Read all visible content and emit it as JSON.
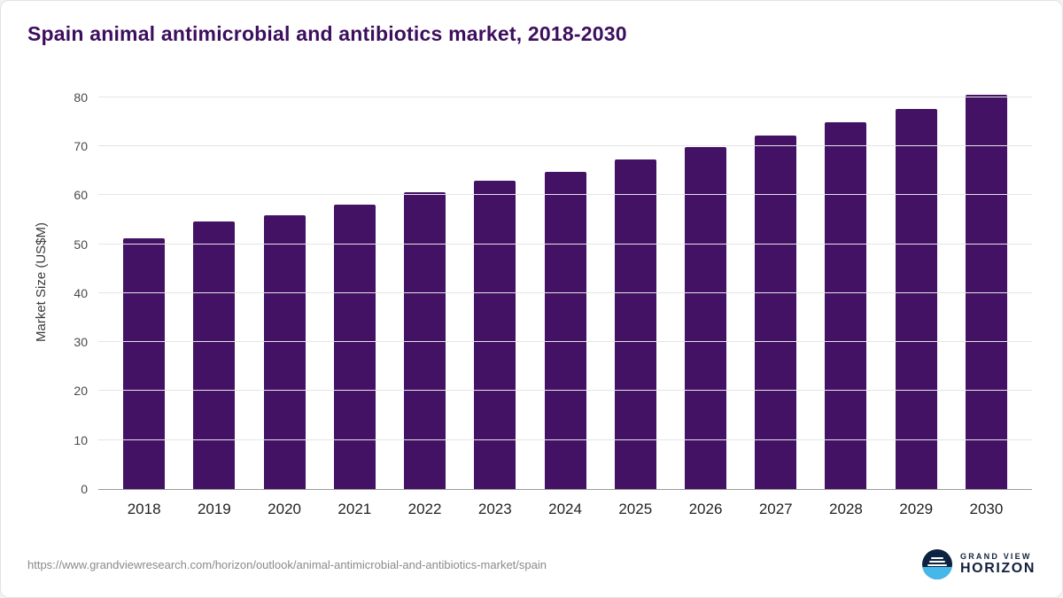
{
  "title": "Spain animal antimicrobial and antibiotics market, 2018-2030",
  "chart_data": {
    "type": "bar",
    "title": "Spain animal antimicrobial and antibiotics market, 2018-2030",
    "categories": [
      "2018",
      "2019",
      "2020",
      "2021",
      "2022",
      "2023",
      "2024",
      "2025",
      "2026",
      "2027",
      "2028",
      "2029",
      "2030"
    ],
    "values": [
      51.2,
      54.6,
      56.0,
      58.0,
      60.7,
      63.0,
      64.8,
      67.3,
      69.8,
      72.2,
      74.9,
      77.7,
      80.6
    ],
    "xlabel": "",
    "ylabel": "Market Size (US$M)",
    "ylim": [
      0,
      80
    ],
    "ytick_step": 10,
    "grid": true,
    "legend": "none",
    "bar_color": "#431265"
  },
  "colors": {
    "title": "#3d0e5e",
    "bar": "#431265",
    "gridline": "#e4e4e4",
    "axis_line": "#9b9b9b"
  },
  "footer": {
    "source_url": "https://www.grandviewresearch.com/horizon/outlook/animal-antimicrobial-and-antibiotics-market/spain",
    "logo_line1": "GRAND VIEW",
    "logo_line2": "HORIZON"
  }
}
